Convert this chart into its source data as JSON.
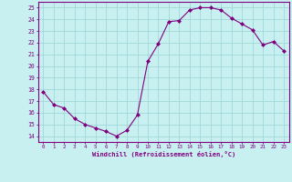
{
  "x": [
    0,
    1,
    2,
    3,
    4,
    5,
    6,
    7,
    8,
    9,
    10,
    11,
    12,
    13,
    14,
    15,
    16,
    17,
    18,
    19,
    20,
    21,
    22,
    23
  ],
  "y": [
    17.8,
    16.7,
    16.4,
    15.5,
    15.0,
    14.7,
    14.4,
    14.0,
    14.5,
    15.8,
    20.4,
    21.9,
    23.8,
    23.9,
    24.8,
    25.0,
    25.0,
    24.8,
    24.1,
    23.6,
    23.1,
    21.8,
    22.1,
    21.3
  ],
  "line_color": "#800080",
  "marker": "D",
  "marker_size": 2,
  "bg_color": "#c8f0f0",
  "grid_color": "#a0d8d8",
  "xlabel": "Windchill (Refroidissement éolien,°C)",
  "xlabel_color": "#800080",
  "tick_color": "#800080",
  "ylabel_ticks": [
    14,
    15,
    16,
    17,
    18,
    19,
    20,
    21,
    22,
    23,
    24,
    25
  ],
  "xlim": [
    -0.5,
    23.5
  ],
  "ylim": [
    13.5,
    25.5
  ],
  "spine_color": "#800080",
  "tick_fontsize": 4.2,
  "xlabel_fontsize": 5.0
}
